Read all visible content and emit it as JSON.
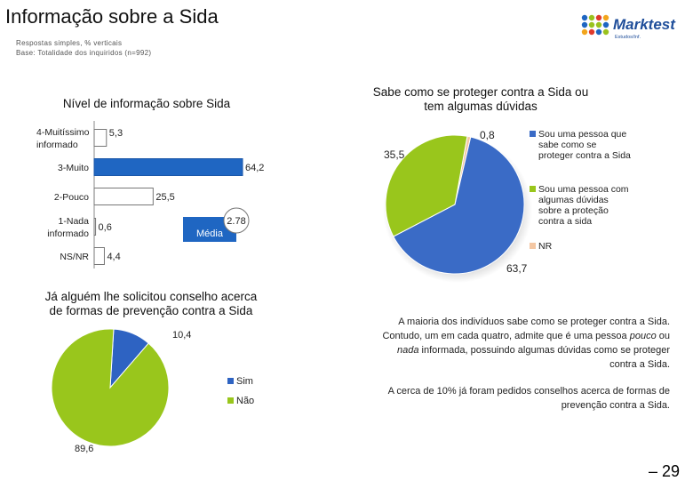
{
  "header": {
    "title": "Informação sobre a Sida",
    "subtitle1": "Respostas simples, % verticais",
    "subtitle2": "Base: Totalidade dos inquiridos (n=992)"
  },
  "logo": {
    "brand": "Marktest",
    "tagline": "Estudos/Inf."
  },
  "colors": {
    "blue": "#1f66c2",
    "green": "#9ac21e",
    "peach": "#f4c7a3",
    "sim": "#2e63c2",
    "nao": "#99c61c"
  },
  "chart_data": [
    {
      "type": "bar",
      "orientation": "horizontal",
      "title": "Nível de informação sobre Sida",
      "categories": [
        "4-Muitíssimo informado",
        "3-Muito",
        "2-Pouco",
        "1-Nada informado",
        "NS/NR"
      ],
      "category_lines": [
        [
          "4-Muitíssimo",
          "informado"
        ],
        [
          "3-Muito"
        ],
        [
          "2-Pouco"
        ],
        [
          "1-Nada",
          "informado"
        ],
        [
          "NS/NR"
        ]
      ],
      "values": [
        5.3,
        64.2,
        25.5,
        0.6,
        4.4
      ],
      "value_labels": [
        "5,3",
        "64,2",
        "25,5",
        "0,6",
        "4,4"
      ],
      "highlight_index": 1,
      "xlim": [
        0,
        64.2
      ],
      "mean": {
        "label": "Média",
        "value": "2.78"
      }
    },
    {
      "type": "pie",
      "title": "Sabe como se proteger contra a Sida ou tem algumas dúvidas",
      "title_lines": [
        "Sabe como se proteger contra a Sida ou",
        "tem algumas dúvidas"
      ],
      "slices": [
        {
          "label": "Sou uma pessoa que sabe como se proteger contra a Sida",
          "label_lines": [
            "Sou uma pessoa que",
            "sabe como se",
            "proteger contra a Sida"
          ],
          "value": 63.7,
          "value_label": "63,7",
          "color": "#3a6bc6"
        },
        {
          "label": "Sou uma pessoa com algumas dúvidas sobre a proteção contra a sida",
          "label_lines": [
            "Sou uma pessoa com",
            "algumas dúvidas",
            "sobre a proteção",
            "contra a sida"
          ],
          "value": 35.5,
          "value_label": "35,5",
          "color": "#99c61c"
        },
        {
          "label": "NR",
          "label_lines": [
            "NR"
          ],
          "value": 0.8,
          "value_label": "0,8",
          "color": "#f4c7a3"
        }
      ]
    },
    {
      "type": "pie",
      "title": "Já alguém lhe solicitou conselho acerca de formas de prevenção contra a Sida",
      "title_lines": [
        "Já alguém lhe solicitou conselho acerca",
        "de formas de prevenção contra a Sida"
      ],
      "slices": [
        {
          "label": "Sim",
          "value": 10.4,
          "value_label": "10,4",
          "color": "#2e63c2"
        },
        {
          "label": "Não",
          "value": 89.6,
          "value_label": "89,6",
          "color": "#99c61c"
        }
      ]
    }
  ],
  "text": {
    "paragraph1_lines": [
      "A maioria dos indivíduos sabe como se proteger contra a Sida.",
      "Contudo, um em cada quatro, admite que é uma pessoa ",
      "pouco",
      " ou ",
      "nada",
      " informada, possuindo algumas dúvidas como se proteger",
      "contra a Sida."
    ],
    "paragraph2_lines": [
      "A cerca de 10% já foram pedidos conselhos acerca de formas de",
      "prevenção contra a Sida."
    ]
  },
  "page_number": "– 29"
}
